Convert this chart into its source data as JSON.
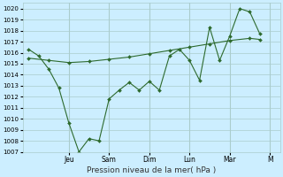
{
  "xlabel": "Pression niveau de la mer( hPa )",
  "bg_color": "#cceeff",
  "grid_color": "#aacccc",
  "line_color": "#2d6a2d",
  "ylim": [
    1007,
    1020.5
  ],
  "yticks": [
    1007,
    1008,
    1009,
    1010,
    1011,
    1012,
    1013,
    1014,
    1015,
    1016,
    1017,
    1018,
    1019,
    1020
  ],
  "day_labels": [
    "Jeu",
    "Sam",
    "Dim",
    "Lun",
    "Mar",
    "M"
  ],
  "day_positions": [
    2.0,
    4.0,
    6.0,
    8.0,
    10.0,
    12.0
  ],
  "series1_x": [
    0.0,
    0.5,
    1.0,
    1.5,
    2.0,
    2.5,
    3.0,
    3.5,
    4.0,
    4.5,
    5.0,
    5.5,
    6.0,
    6.5,
    7.0,
    7.5,
    8.0,
    8.5,
    9.0,
    9.5,
    10.0,
    10.5,
    11.0,
    11.5
  ],
  "series1_y": [
    1016.3,
    1015.7,
    1014.5,
    1012.8,
    1009.6,
    1007.0,
    1008.2,
    1008.0,
    1011.8,
    1012.6,
    1013.3,
    1012.6,
    1013.4,
    1012.6,
    1015.7,
    1016.3,
    1015.3,
    1013.5,
    1018.3,
    1015.3,
    1017.5,
    1020.0,
    1019.7,
    1017.7
  ],
  "series2_x": [
    0.0,
    1.0,
    2.0,
    3.0,
    4.0,
    5.0,
    6.0,
    7.0,
    8.0,
    9.0,
    10.0,
    11.0,
    11.5
  ],
  "series2_y": [
    1015.5,
    1015.3,
    1015.1,
    1015.2,
    1015.4,
    1015.6,
    1015.9,
    1016.2,
    1016.5,
    1016.8,
    1017.1,
    1017.3,
    1017.2
  ],
  "marker_size": 2.0,
  "linewidth": 0.8,
  "tick_fontsize": 5.0,
  "xlabel_fontsize": 6.5,
  "xtick_fontsize": 5.5
}
